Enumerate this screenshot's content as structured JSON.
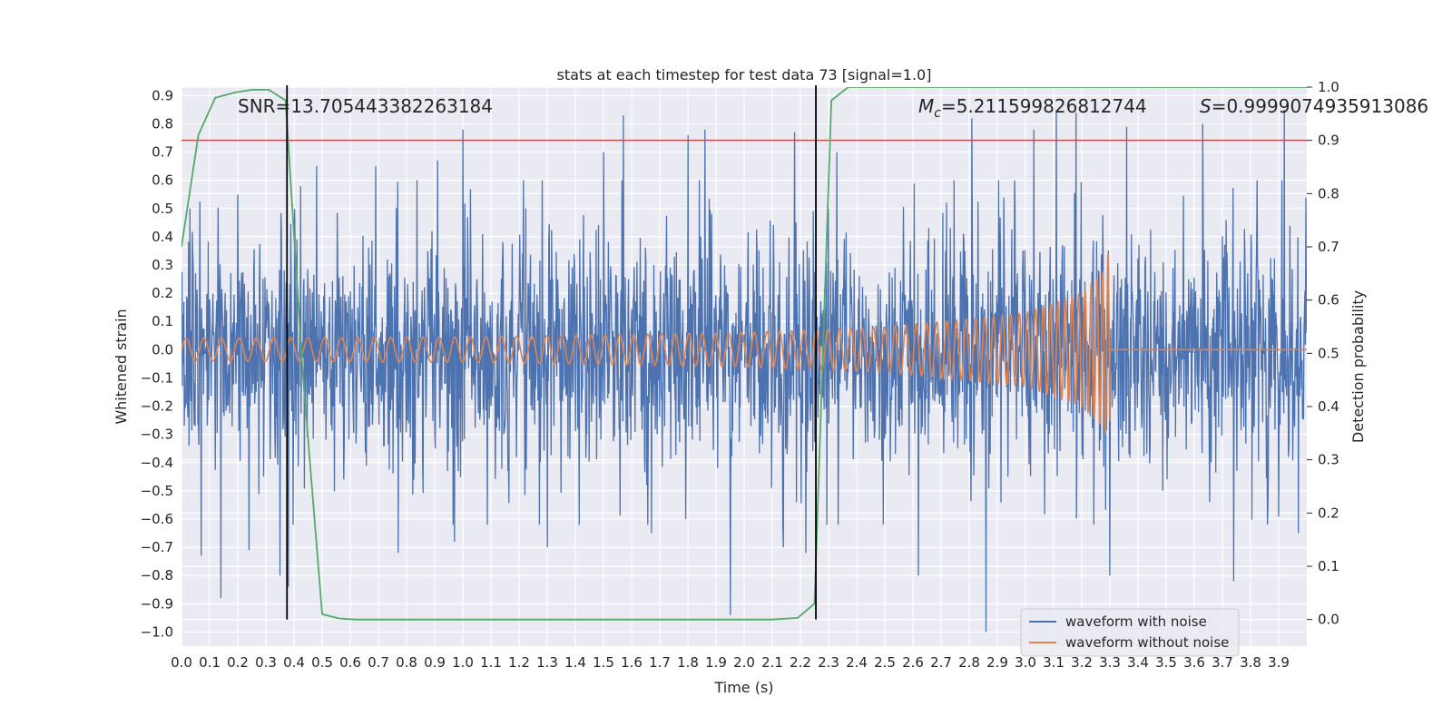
{
  "chart_data": {
    "type": "line",
    "title": "stats at each timestep for test data 73 [signal=1.0]",
    "xlabel": "Time (s)",
    "ylabel": "Whitened strain",
    "ylabel_right": "Detection probability",
    "xlim": [
      0.0,
      4.0
    ],
    "ylim": [
      -1.05,
      0.93
    ],
    "ylim_right": [
      -0.05,
      1.0
    ],
    "x_ticks": [
      "0.0",
      "0.1",
      "0.2",
      "0.3",
      "0.4",
      "0.5",
      "0.6",
      "0.7",
      "0.8",
      "0.9",
      "1.0",
      "1.1",
      "1.2",
      "1.3",
      "1.4",
      "1.5",
      "1.6",
      "1.7",
      "1.8",
      "1.9",
      "2.0",
      "2.1",
      "2.2",
      "2.3",
      "2.4",
      "2.5",
      "2.6",
      "2.7",
      "2.8",
      "2.9",
      "3.0",
      "3.1",
      "3.2",
      "3.3",
      "3.4",
      "3.5",
      "3.6",
      "3.7",
      "3.8",
      "3.9"
    ],
    "y_ticks": [
      "0.9",
      "0.8",
      "0.7",
      "0.6",
      "0.5",
      "0.4",
      "0.3",
      "0.2",
      "0.1",
      "0.0",
      "−0.1",
      "−0.2",
      "−0.3",
      "−0.4",
      "−0.5",
      "−0.6",
      "−0.7",
      "−0.8",
      "−0.9",
      "−1.0"
    ],
    "y_ticks_right": [
      "1.0",
      "0.9",
      "0.8",
      "0.7",
      "0.6",
      "0.5",
      "0.4",
      "0.3",
      "0.2",
      "0.1",
      "0.0"
    ],
    "annotations": {
      "snr": "SNR=13.705443382263184",
      "mc_symbol": "M",
      "mc_sub": "c",
      "mc_value": "=5.211599826812744",
      "s_symbol": "S",
      "s_value": "=0.9999074935913086"
    },
    "threshold": 0.9,
    "vlines": [
      0.375,
      2.255
    ],
    "legend": {
      "location": "lower-right",
      "entries": [
        "waveform with noise",
        "waveform without noise"
      ]
    },
    "series": [
      {
        "name": "waveform with noise",
        "color": "#4c72b0",
        "description": "whitened noisy strain, roughly |x| ≤ 0.85 with spikes to -1.0",
        "peaks_high": [
          [
            0.03,
            0.5
          ],
          [
            0.2,
            0.55
          ],
          [
            0.48,
            0.65
          ],
          [
            0.69,
            0.65
          ],
          [
            0.91,
            0.67
          ],
          [
            1.0,
            0.78
          ],
          [
            1.5,
            0.7
          ],
          [
            1.57,
            0.83
          ],
          [
            1.8,
            0.76
          ],
          [
            1.86,
            0.78
          ],
          [
            2.18,
            0.77
          ],
          [
            2.33,
            0.7
          ],
          [
            2.81,
            0.82
          ],
          [
            3.03,
            0.78
          ],
          [
            3.11,
            0.84
          ],
          [
            3.18,
            0.84
          ],
          [
            3.36,
            0.79
          ],
          [
            3.63,
            0.8
          ],
          [
            3.92,
            0.85
          ]
        ],
        "peaks_low": [
          [
            0.07,
            -0.73
          ],
          [
            0.14,
            -0.88
          ],
          [
            0.24,
            -0.71
          ],
          [
            0.35,
            -0.8
          ],
          [
            0.38,
            -0.84
          ],
          [
            0.77,
            -0.72
          ],
          [
            0.97,
            -0.68
          ],
          [
            1.3,
            -0.7
          ],
          [
            1.67,
            -0.65
          ],
          [
            1.95,
            -0.94
          ],
          [
            2.14,
            -0.7
          ],
          [
            2.22,
            -0.72
          ],
          [
            2.62,
            -0.8
          ],
          [
            2.86,
            -1.0
          ],
          [
            3.3,
            -0.8
          ],
          [
            3.74,
            -0.82
          ],
          [
            3.86,
            -0.62
          ],
          [
            3.97,
            -0.65
          ]
        ]
      },
      {
        "name": "waveform without noise",
        "color": "#dd8452",
        "description": "chirp: amplitude 0.04 growing to 0.37 at 3.3 s, then zero",
        "chirp_amplitude": [
          [
            0.0,
            0.04
          ],
          [
            1.0,
            0.045
          ],
          [
            2.0,
            0.06
          ],
          [
            2.5,
            0.08
          ],
          [
            3.0,
            0.13
          ],
          [
            3.2,
            0.2
          ],
          [
            3.28,
            0.28
          ],
          [
            3.3,
            0.37
          ]
        ],
        "chirp_end": 3.3
      },
      {
        "name": "detection probability",
        "color": "#55a868",
        "axis": "right",
        "x": [
          0.0,
          0.06,
          0.12,
          0.19,
          0.25,
          0.31,
          0.37,
          0.43,
          0.5,
          0.56,
          0.62,
          1.0,
          2.0,
          2.1,
          2.19,
          2.25,
          2.31,
          2.37,
          2.5,
          3.0,
          4.0
        ],
        "values": [
          0.7,
          0.91,
          0.98,
          0.99,
          0.995,
          0.995,
          0.975,
          0.47,
          0.01,
          0.002,
          0.0,
          0.0,
          0.0,
          0.0,
          0.003,
          0.03,
          0.975,
          1.0,
          1.0,
          1.0,
          1.0
        ]
      }
    ],
    "colors": {
      "background": "#eaeaf2",
      "grid": "#ffffff",
      "threshold": "#c44e52",
      "vline": "#000000"
    }
  }
}
